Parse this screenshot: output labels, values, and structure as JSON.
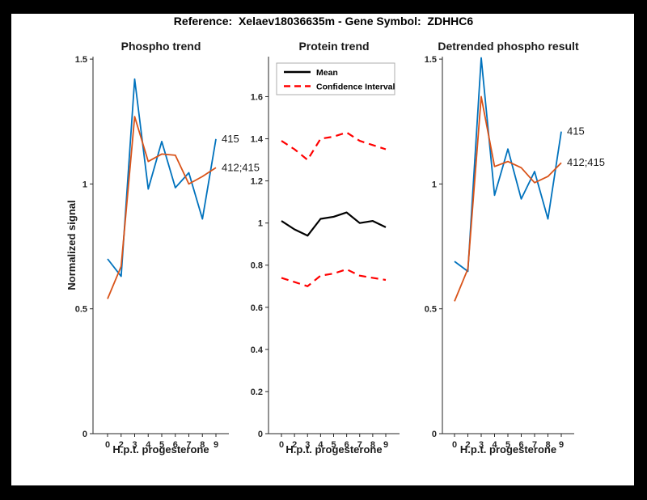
{
  "page": {
    "title": "Reference:  Xelaev18036635m - Gene Symbol:  ZDHHC6",
    "frame_color": "#000000",
    "figure_background": "#ffffff",
    "axis_color": "#262626"
  },
  "chart_data": [
    {
      "type": "line",
      "title": "Phospho trend",
      "xlabel": "H.p.t. progesterone",
      "ylabel": "Normalized signal",
      "x_labels": [
        "0",
        "2",
        "3",
        "4",
        "5",
        "6",
        "7",
        "8",
        "9"
      ],
      "ylim": [
        0,
        1.51
      ],
      "grid": false,
      "yticks": {
        "values": [
          0,
          0.5,
          1,
          1.5
        ],
        "labels": [
          "0",
          "0.5",
          "1",
          "1.5"
        ]
      },
      "series": [
        {
          "name": "415",
          "color": "#0072bd",
          "dash": false,
          "end_label": "415",
          "values": [
            0.7,
            0.63,
            1.42,
            0.98,
            1.17,
            0.985,
            1.045,
            0.86,
            1.18
          ]
        },
        {
          "name": "412;415",
          "color": "#d95319",
          "dash": false,
          "end_label": "412;415",
          "values": [
            0.54,
            0.67,
            1.27,
            1.09,
            1.12,
            1.115,
            1.0,
            1.03,
            1.065
          ]
        }
      ]
    },
    {
      "type": "line",
      "title": "Protein trend",
      "xlabel": "H.p.t. progesterone",
      "ylabel": "",
      "x_labels": [
        "0",
        "2",
        "3",
        "4",
        "5",
        "6",
        "7",
        "8",
        "9"
      ],
      "ylim": [
        0,
        1.79
      ],
      "grid": false,
      "yticks": {
        "values": [
          0,
          0.2,
          0.4,
          0.6,
          0.8,
          1,
          1.2,
          1.4,
          1.6
        ],
        "labels": [
          "0",
          "0.2",
          "0.4",
          "0.6",
          "0.8",
          "1",
          "1.2",
          "1.4",
          "1.6"
        ]
      },
      "legend": {
        "position": "top-left",
        "items": [
          {
            "label": "Mean",
            "color": "#000000",
            "dash": false
          },
          {
            "label": "Confidence Interval",
            "color": "#ff0000",
            "dash": true
          }
        ]
      },
      "series": [
        {
          "name": "Mean",
          "color": "#000000",
          "dash": false,
          "values": [
            1.01,
            0.97,
            0.94,
            1.02,
            1.03,
            1.05,
            1.0,
            1.01,
            0.98
          ]
        },
        {
          "name": "Confidence Interval upper",
          "color": "#ff0000",
          "dash": true,
          "values": [
            1.39,
            1.35,
            1.3,
            1.4,
            1.41,
            1.43,
            1.39,
            1.37,
            1.35
          ]
        },
        {
          "name": "Confidence Interval lower",
          "color": "#ff0000",
          "dash": true,
          "values": [
            0.74,
            0.72,
            0.7,
            0.75,
            0.76,
            0.78,
            0.75,
            0.74,
            0.73
          ]
        }
      ]
    },
    {
      "type": "line",
      "title": "Detrended phospho result",
      "xlabel": "H.p.t. progesterone",
      "ylabel": "",
      "x_labels": [
        "0",
        "2",
        "3",
        "4",
        "5",
        "6",
        "7",
        "8",
        "9"
      ],
      "ylim": [
        0,
        1.51
      ],
      "grid": false,
      "yticks": {
        "values": [
          0,
          0.5,
          1,
          1.5
        ],
        "labels": [
          "0",
          "0.5",
          "1",
          "1.5"
        ]
      },
      "series": [
        {
          "name": "415",
          "color": "#0072bd",
          "dash": false,
          "end_label": "415",
          "values": [
            0.69,
            0.65,
            1.505,
            0.955,
            1.14,
            0.94,
            1.05,
            0.86,
            1.21
          ]
        },
        {
          "name": "412;415",
          "color": "#d95319",
          "dash": false,
          "end_label": "412;415",
          "values": [
            0.53,
            0.66,
            1.35,
            1.07,
            1.09,
            1.065,
            1.005,
            1.03,
            1.085
          ]
        }
      ]
    }
  ]
}
